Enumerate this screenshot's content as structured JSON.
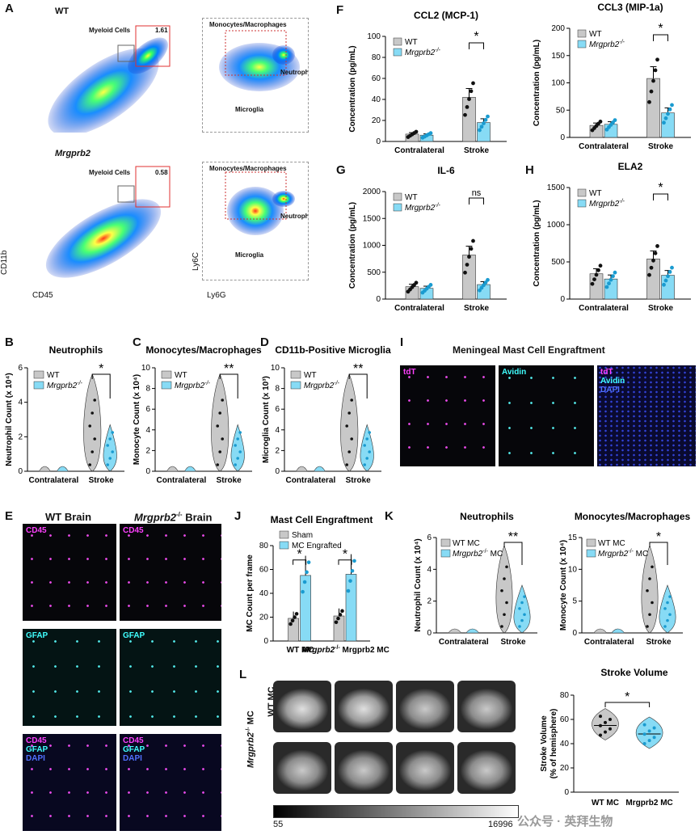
{
  "panels": {
    "A": "A",
    "B": "B",
    "C": "C",
    "D": "D",
    "E": "E",
    "F": "F",
    "G": "G",
    "H": "H",
    "I": "I",
    "J": "J",
    "K": "K",
    "L": "L"
  },
  "flow": {
    "wt_label": "WT",
    "ko_label": "Mrgprb2",
    "myeloid": "Myeloid Cells",
    "wt_pct": "1.61",
    "ko_pct": "0.58",
    "mono": "Monocytes/Macrophages",
    "neut": "Neutrophils",
    "micro": "Microglia",
    "x1": "CD45",
    "y1": "CD11b",
    "x2": "Ly6G",
    "y2": "Ly6C"
  },
  "elisa": {
    "ccl2_title": "CCL2 (MCP-1)",
    "ccl3_title": "CCL3 (MIP-1a)",
    "il6_title": "IL-6",
    "ela2_title": "ELA2",
    "ylabel": "Concentration (pg/mL)",
    "groups": [
      "Contralateral",
      "Stroke"
    ],
    "legend": [
      "WT",
      "Mrgprb2"
    ],
    "sig": [
      "*",
      "*",
      "ns",
      "*"
    ]
  },
  "violin": {
    "b_title": "Neutrophils",
    "b_ylabel": "Neutrophil Count (x 10⁴)",
    "c_title": "Monocytes/Macrophages",
    "c_ylabel": "Monocyte Count (x 10⁴)",
    "d_title": "CD11b-Positive Microglia",
    "d_ylabel": "Microglia Count (x 10³)",
    "groups": [
      "Contralateral",
      "Stroke"
    ],
    "legend": [
      "WT",
      "Mrgprb2"
    ],
    "sig": [
      "*",
      "**",
      "**"
    ]
  },
  "panelI": {
    "title": "Meningeal Mast Cell Engraftment",
    "ch1": "tdT",
    "ch2": "Avidin",
    "ch3": "DAPI"
  },
  "panelE": {
    "wt_title": "WT Brain",
    "ko_title": "Brain",
    "ko_gene": "Mrgprb2",
    "cd45": "CD45",
    "gfap": "GFAP",
    "dapi": "DAPI"
  },
  "panelJ": {
    "title": "Mast Cell Engraftment",
    "ylabel": "MC Count per frame",
    "legend": [
      "Sham",
      "MC Engrafted"
    ],
    "groups": [
      "WT MC",
      "MC"
    ],
    "sig": [
      "*",
      "*"
    ]
  },
  "panelK": {
    "neut_title": "Neutrophils",
    "mono_title": "Monocytes/Macrophages",
    "neut_ylabel": "Neutrophil Count (x 10⁴)",
    "mono_ylabel": "Monocyte Count (x 10⁴)",
    "legend": [
      "WT MC",
      "MC"
    ],
    "groups": [
      "Contralateral",
      "Stroke"
    ],
    "sig": [
      "**",
      "*"
    ]
  },
  "panelL": {
    "row1": "WT MC",
    "row2": "MC",
    "scale_min": "55",
    "scale_max": "16996",
    "sv_title": "Stroke Volume",
    "sv_ylabel": "Stroke Volume",
    "sv_ylabel2": "(% of hemisphere)",
    "groups": [
      "WT MC",
      "Mrgprb2 MC"
    ],
    "sig": "*"
  },
  "watermark": "公众号 · 英拜生物",
  "chart_data": [
    {
      "type": "bar",
      "title": "CCL2 (MCP-1)",
      "ylabel": "Concentration (pg/mL)",
      "categories": [
        "Contralateral",
        "Stroke"
      ],
      "ylim": [
        0,
        100
      ],
      "series": [
        {
          "name": "WT",
          "values": [
            7,
            42
          ]
        },
        {
          "name": "Mrgprb2",
          "values": [
            6,
            18
          ]
        }
      ]
    },
    {
      "type": "bar",
      "title": "CCL3 (MIP-1a)",
      "ylabel": "Concentration (pg/mL)",
      "categories": [
        "Contralateral",
        "Stroke"
      ],
      "ylim": [
        0,
        200
      ],
      "series": [
        {
          "name": "WT",
          "values": [
            22,
            108
          ]
        },
        {
          "name": "Mrgprb2",
          "values": [
            24,
            45
          ]
        }
      ]
    },
    {
      "type": "bar",
      "title": "IL-6",
      "ylabel": "Concentration (pg/mL)",
      "categories": [
        "Contralateral",
        "Stroke"
      ],
      "ylim": [
        0,
        2000
      ],
      "series": [
        {
          "name": "WT",
          "values": [
            230,
            820
          ]
        },
        {
          "name": "Mrgprb2",
          "values": [
            200,
            270
          ]
        }
      ]
    },
    {
      "type": "bar",
      "title": "ELA2",
      "ylabel": "Concentration (pg/mL)",
      "categories": [
        "Contralateral",
        "Stroke"
      ],
      "ylim": [
        0,
        1500
      ],
      "series": [
        {
          "name": "WT",
          "values": [
            340,
            540
          ]
        },
        {
          "name": "Mrgprb2",
          "values": [
            270,
            320
          ]
        }
      ]
    },
    {
      "type": "bar",
      "title": "Mast Cell Engraftment",
      "ylabel": "MC Count per frame",
      "categories": [
        "WT MC",
        "Mrgprb2 MC"
      ],
      "ylim": [
        0,
        80
      ],
      "series": [
        {
          "name": "Sham",
          "values": [
            19,
            21
          ]
        },
        {
          "name": "MC Engrafted",
          "values": [
            55,
            56
          ]
        }
      ]
    }
  ]
}
